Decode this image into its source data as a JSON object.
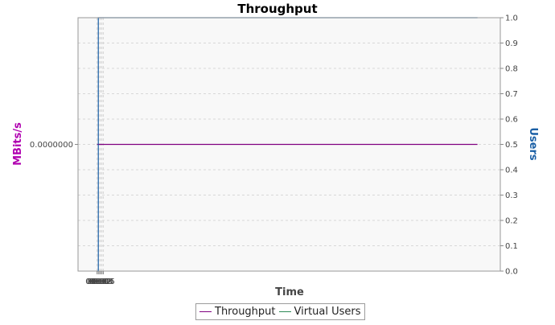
{
  "chart_data": {
    "type": "line",
    "title": "Throughput",
    "xlabel": "Time",
    "ylabel_left": "MBits/s",
    "ylabel_right": "Users",
    "x_ticks": [
      "00:00",
      "00:01",
      "00:02",
      "00:03",
      "00:04",
      "00:05"
    ],
    "y_left_ticks": [
      "0.0000000"
    ],
    "y_right_ticks": [
      "0.0",
      "0.1",
      "0.2",
      "0.3",
      "0.4",
      "0.5",
      "0.6",
      "0.7",
      "0.8",
      "0.9",
      "1.0"
    ],
    "x_range_seconds": [
      -15,
      318
    ],
    "y_left_range": [
      -1,
      1
    ],
    "y_right_range": [
      0,
      1.0
    ],
    "grid": true,
    "legend_position": "bottom",
    "series": [
      {
        "name": "Throughput",
        "axis": "left",
        "color": "#800080",
        "x_seconds": [
          0,
          300
        ],
        "values": [
          0,
          0
        ]
      },
      {
        "name": "Virtual Users",
        "axis": "right",
        "color": "#1a5fa5",
        "legend_color": "#2e8b57",
        "x_seconds": [
          0,
          1,
          1,
          300
        ],
        "values": [
          0,
          0,
          1,
          1
        ]
      }
    ],
    "colors": {
      "title": "#000000",
      "ylabel_left": "#b000b0",
      "ylabel_right": "#1a5fa5",
      "plot_background": "#f8f8f8",
      "grid": "#d8d8d8"
    }
  }
}
